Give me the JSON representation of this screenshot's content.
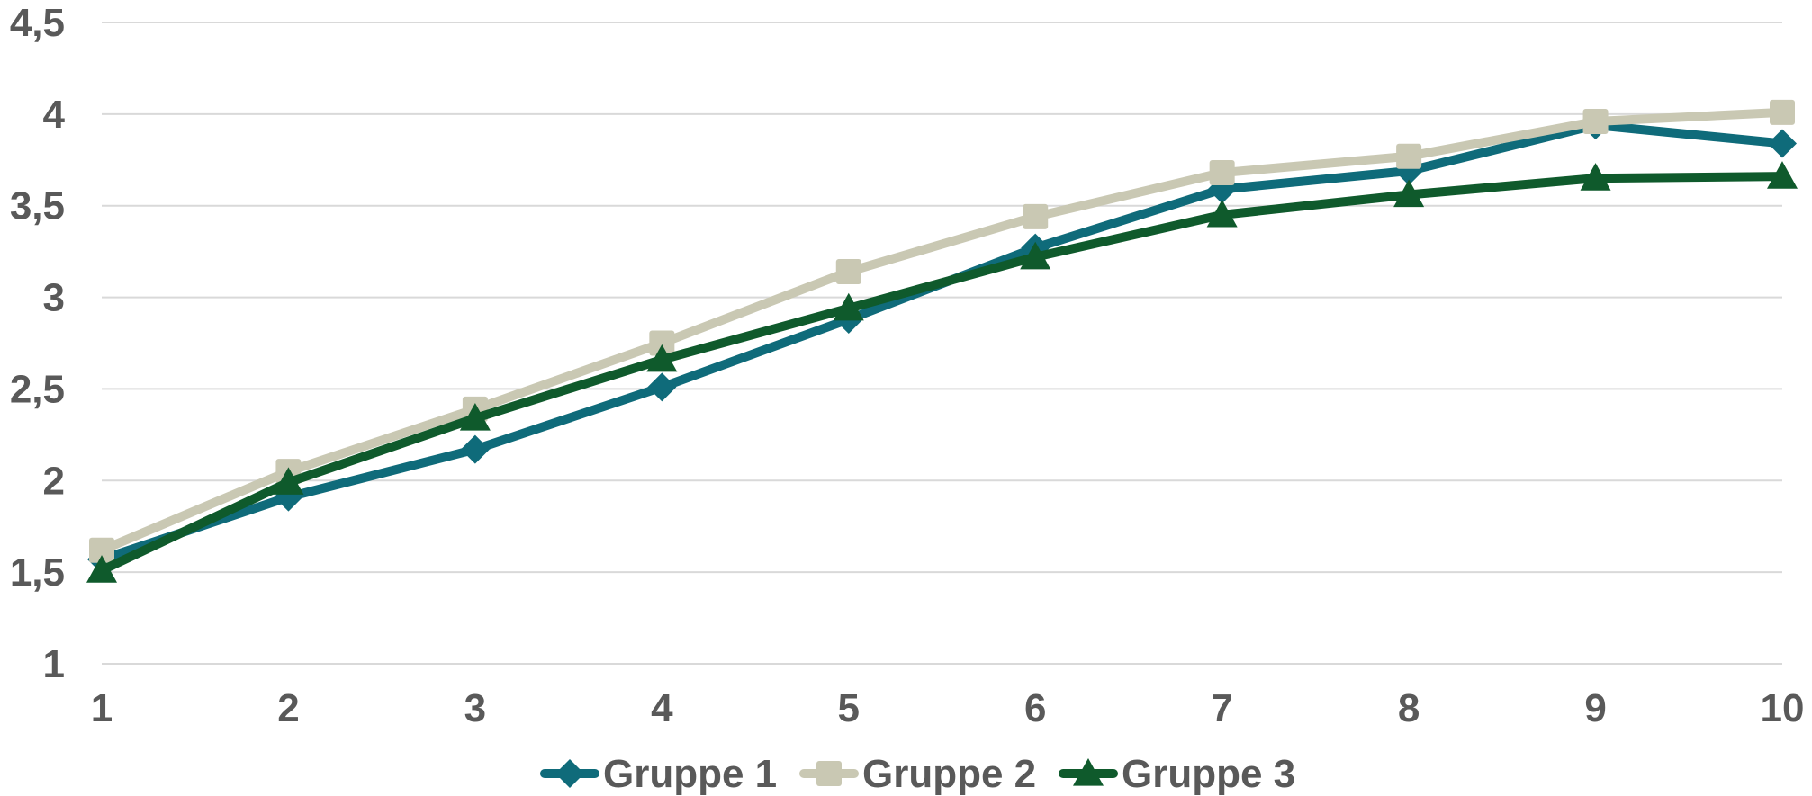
{
  "chart_data": {
    "type": "line",
    "x": [
      1,
      2,
      3,
      4,
      5,
      6,
      7,
      8,
      9,
      10
    ],
    "y_ticks": [
      "1",
      "1,5",
      "2",
      "2,5",
      "3",
      "3,5",
      "4",
      "4,5"
    ],
    "x_ticks": [
      "1",
      "2",
      "3",
      "4",
      "5",
      "6",
      "7",
      "8",
      "9",
      "10"
    ],
    "ylim": [
      1,
      4.5
    ],
    "grid": true,
    "legend_position": "bottom",
    "series": [
      {
        "name": "Gruppe 1",
        "color": "#0f6b7a",
        "marker": "diamond",
        "values": [
          1.57,
          1.91,
          2.17,
          2.51,
          2.88,
          3.27,
          3.59,
          3.69,
          3.94,
          3.84
        ]
      },
      {
        "name": "Gruppe 2",
        "color": "#c9c8b3",
        "marker": "square",
        "values": [
          1.62,
          2.05,
          2.39,
          2.75,
          3.14,
          3.44,
          3.68,
          3.77,
          3.96,
          4.01
        ]
      },
      {
        "name": "Gruppe 3",
        "color": "#0f5a2c",
        "marker": "triangle",
        "values": [
          1.51,
          1.99,
          2.34,
          2.66,
          2.94,
          3.22,
          3.45,
          3.56,
          3.65,
          3.66
        ]
      }
    ]
  }
}
